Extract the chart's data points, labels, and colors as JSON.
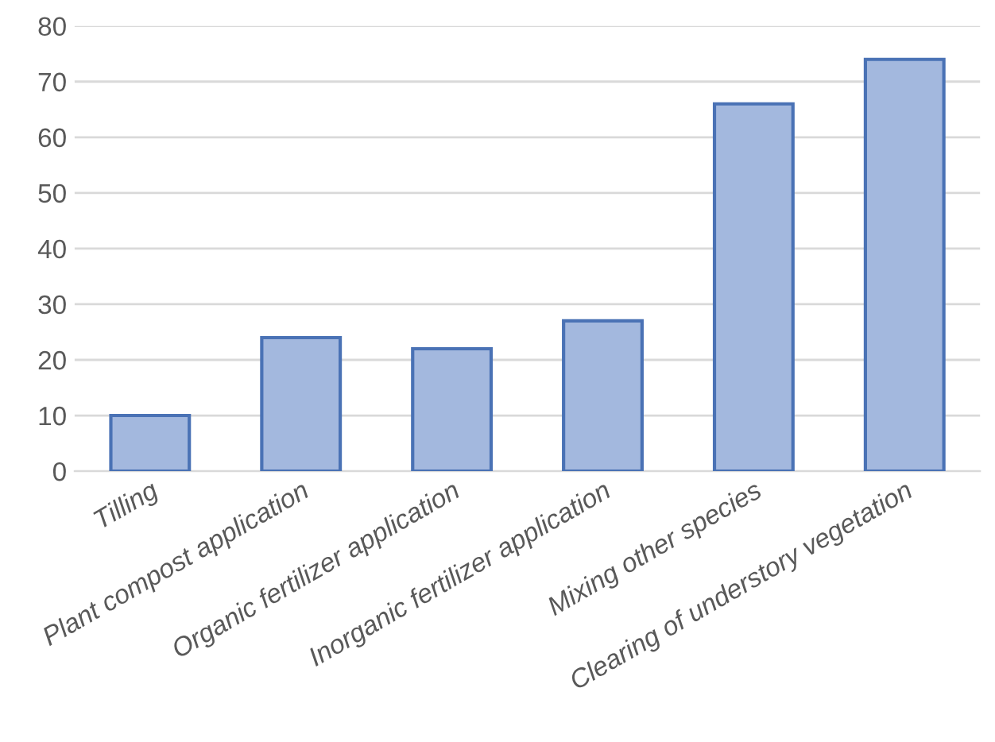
{
  "chart_data": {
    "type": "bar",
    "categories": [
      "Tilling",
      "Plant compost application",
      "Organic fertilizer application",
      "Inorganic fertilizer application",
      "Mixing other species",
      "Clearing of understory vegetation"
    ],
    "values": [
      10,
      24,
      22,
      27,
      66,
      74
    ],
    "color": "#a3b8de",
    "ylim": [
      0,
      80
    ],
    "yticks": [
      0,
      10,
      20,
      30,
      40,
      50,
      60,
      70,
      80
    ],
    "grid": "y",
    "legend": false
  }
}
